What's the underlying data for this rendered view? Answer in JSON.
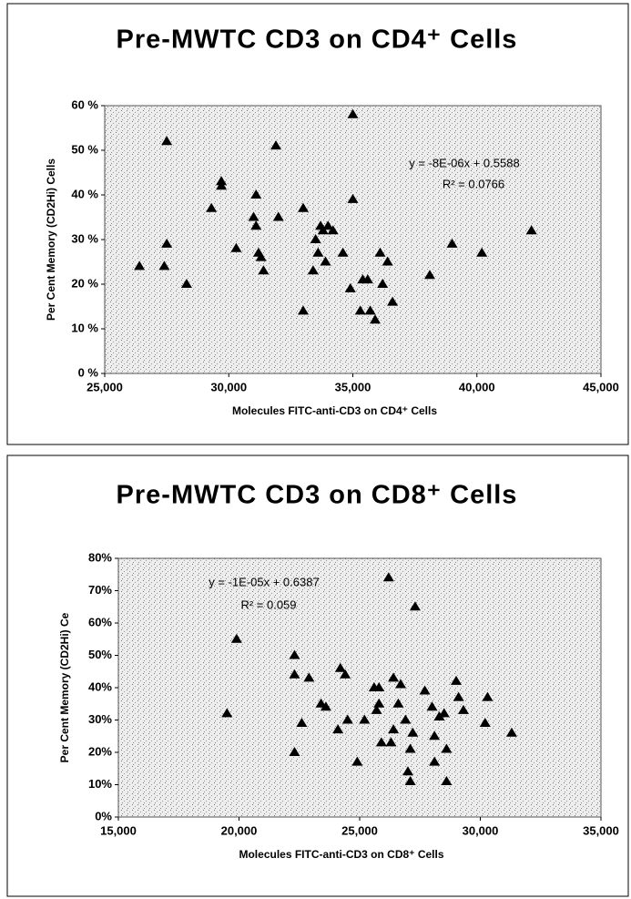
{
  "chart_data": [
    {
      "type": "scatter",
      "title": "Pre-MWTC CD3 on CD4⁺ Cells",
      "xlabel": "Molecules FITC-anti-CD3 on CD4⁺ Cells",
      "ylabel": "Per Cent Memory (CD2Hi) Cells",
      "annotations": [
        "y = -8E-06x + 0.5588",
        "R² = 0.0766"
      ],
      "color": "#000000",
      "x": [
        26400,
        27500,
        27500,
        27400,
        28300,
        29300,
        29700,
        29700,
        30300,
        31000,
        31100,
        31100,
        31200,
        31300,
        31400,
        31900,
        32000,
        33000,
        33000,
        33400,
        33500,
        33600,
        33700,
        33800,
        33900,
        34000,
        34200,
        34600,
        34900,
        35000,
        35000,
        35300,
        35400,
        35600,
        35700,
        35900,
        36100,
        36200,
        36400,
        36600,
        38100,
        39000,
        40200,
        42200
      ],
      "y": [
        24,
        52,
        29,
        24,
        20,
        37,
        42,
        43,
        28,
        35,
        40,
        33,
        27,
        26,
        23,
        51,
        35,
        14,
        37,
        23,
        30,
        27,
        33,
        32,
        25,
        33,
        32,
        27,
        19,
        58,
        39,
        14,
        21,
        21,
        14,
        12,
        27,
        20,
        25,
        16,
        22,
        29,
        27,
        32
      ],
      "xlim": [
        25000,
        45000
      ],
      "xticks": [
        {
          "value": 25000,
          "label": "25,000"
        },
        {
          "value": 30000,
          "label": "30,000"
        },
        {
          "value": 35000,
          "label": "35,000"
        },
        {
          "value": 40000,
          "label": "40,000"
        },
        {
          "value": 45000,
          "label": "45,000"
        }
      ],
      "ylim": [
        0,
        60
      ],
      "yticks": [
        {
          "value": 0,
          "label": "0 %"
        },
        {
          "value": 10,
          "label": "10 %"
        },
        {
          "value": 20,
          "label": "20 %"
        },
        {
          "value": 30,
          "label": "30 %"
        },
        {
          "value": 40,
          "label": "40 %"
        },
        {
          "value": 50,
          "label": "50 %"
        },
        {
          "value": 60,
          "label": "60 %"
        }
      ]
    },
    {
      "type": "scatter",
      "title": "Pre-MWTC CD3 on CD8⁺ Cells",
      "xlabel": "Molecules FITC-anti-CD3 on CD8⁺ Cells",
      "ylabel": "Per Cent Memory (CD2Hi) Ce",
      "annotations": [
        "y = -1E-05x + 0.6387",
        "R² = 0.059"
      ],
      "color": "#000000",
      "x": [
        19500,
        19900,
        22300,
        22300,
        22300,
        22600,
        22900,
        23400,
        23600,
        24100,
        24200,
        24400,
        24500,
        24900,
        25200,
        25600,
        25700,
        25800,
        25800,
        25900,
        26200,
        26300,
        26400,
        26400,
        26600,
        26700,
        26900,
        27000,
        27100,
        27100,
        27300,
        27200,
        27700,
        28000,
        28100,
        28100,
        28300,
        28500,
        28600,
        28600,
        29000,
        29100,
        29300,
        30200,
        30300,
        31300
      ],
      "y": [
        32,
        55,
        50,
        44,
        20,
        29,
        43,
        35,
        34,
        27,
        46,
        44,
        30,
        17,
        30,
        40,
        33,
        40,
        35,
        23,
        74,
        23,
        43,
        27,
        35,
        41,
        30,
        14,
        11,
        21,
        65,
        26,
        39,
        34,
        25,
        17,
        31,
        32,
        11,
        21,
        42,
        37,
        33,
        29,
        37,
        26
      ],
      "xlim": [
        15000,
        35000
      ],
      "xticks": [
        {
          "value": 15000,
          "label": "15,000"
        },
        {
          "value": 20000,
          "label": "20,000"
        },
        {
          "value": 25000,
          "label": "25,000"
        },
        {
          "value": 30000,
          "label": "30,000"
        },
        {
          "value": 35000,
          "label": "35,000"
        }
      ],
      "ylim": [
        0,
        80
      ],
      "yticks": [
        {
          "value": 0,
          "label": "0%"
        },
        {
          "value": 10,
          "label": "10%"
        },
        {
          "value": 20,
          "label": "20%"
        },
        {
          "value": 30,
          "label": "30%"
        },
        {
          "value": 40,
          "label": "40%"
        },
        {
          "value": 50,
          "label": "50%"
        },
        {
          "value": 60,
          "label": "60%"
        },
        {
          "value": 70,
          "label": "70%"
        },
        {
          "value": 80,
          "label": "80%"
        }
      ]
    }
  ]
}
